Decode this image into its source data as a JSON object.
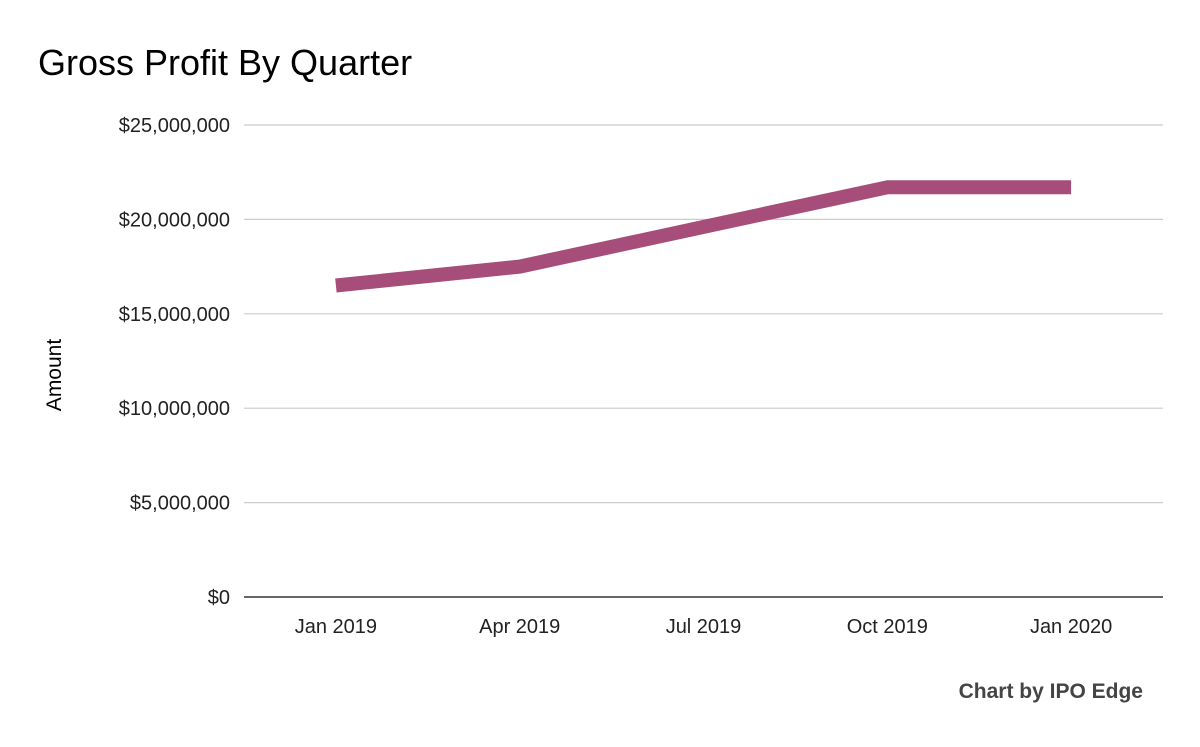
{
  "chart_data": {
    "type": "line",
    "title": "Gross Profit By Quarter",
    "xlabel": "",
    "ylabel": "Amount",
    "categories": [
      "Jan 2019",
      "Apr 2019",
      "Jul 2019",
      "Oct 2019",
      "Jan 2020"
    ],
    "series": [
      {
        "values": [
          16500000,
          17500000,
          19600000,
          21700000,
          21700000
        ]
      }
    ],
    "ylim": [
      0,
      25000000
    ],
    "yticks": [
      0,
      5000000,
      10000000,
      15000000,
      20000000,
      25000000
    ],
    "ytick_labels": [
      "$0",
      "$5,000,000",
      "$10,000,000",
      "$15,000,000",
      "$20,000,000",
      "$25,000,000"
    ],
    "grid": true,
    "legend": "none",
    "line_color": "#a64d79"
  },
  "credit": "Chart by IPO Edge"
}
